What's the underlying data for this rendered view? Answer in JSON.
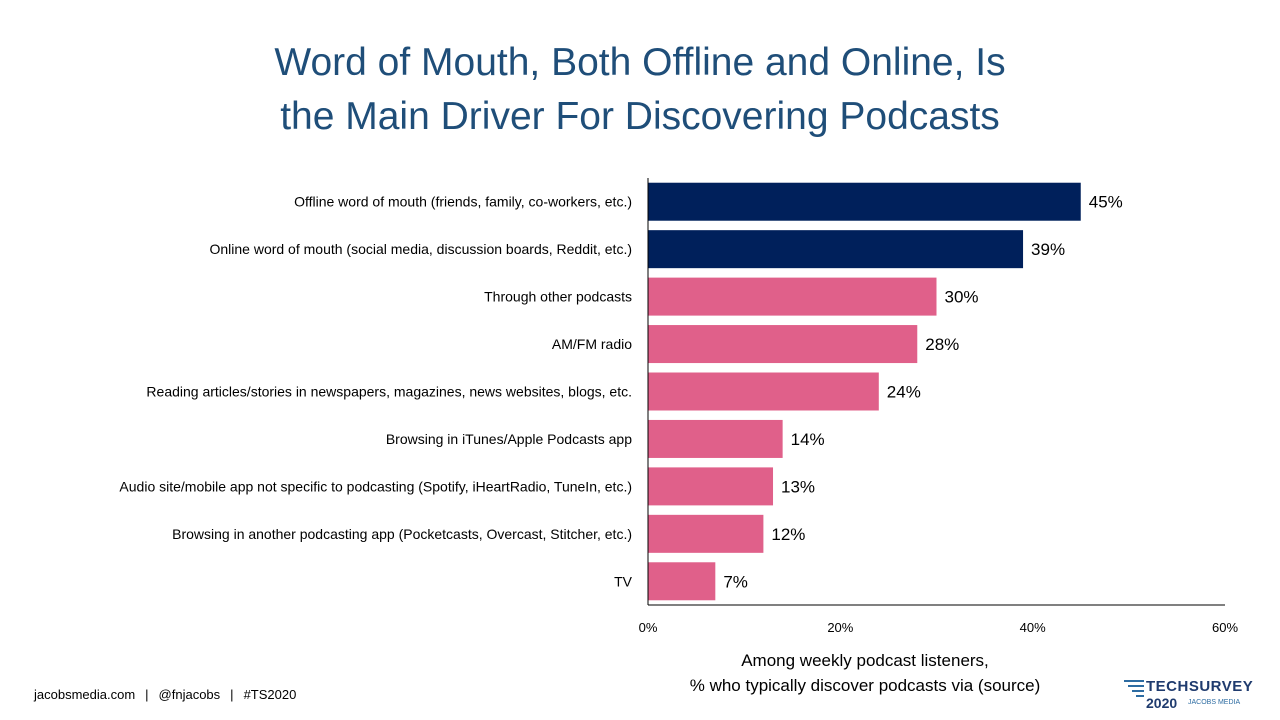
{
  "title": {
    "line1": "Word of Mouth, Both Offline and Online, Is",
    "line2": "the Main Driver For Discovering Podcasts"
  },
  "colors": {
    "title": "#1f4e79",
    "highlight": "#00205b",
    "bar": "#e0608a",
    "axis": "#000000"
  },
  "chart_data": {
    "type": "bar",
    "orientation": "horizontal",
    "title": "Word of Mouth, Both Offline and Online, Is the Main Driver For Discovering Podcasts",
    "categories": [
      "Offline word of mouth (friends, family, co-workers, etc.)",
      "Online word of mouth (social media, discussion boards, Reddit, etc.)",
      "Through other podcasts",
      "AM/FM radio",
      "Reading articles/stories in newspapers, magazines, news websites, blogs, etc.",
      "Browsing in iTunes/Apple Podcasts app",
      "Audio site/mobile app not specific to podcasting (Spotify, iHeartRadio, TuneIn, etc.)",
      "Browsing in another podcasting app (Pocketcasts, Overcast, Stitcher, etc.)",
      "TV"
    ],
    "values": [
      45,
      39,
      30,
      28,
      24,
      14,
      13,
      12,
      7
    ],
    "value_labels": [
      "45%",
      "39%",
      "30%",
      "28%",
      "24%",
      "14%",
      "13%",
      "12%",
      "7%"
    ],
    "highlighted": [
      true,
      true,
      false,
      false,
      false,
      false,
      false,
      false,
      false
    ],
    "xlim": [
      0,
      60
    ],
    "xticks": [
      0,
      20,
      40,
      60
    ],
    "xtick_labels": [
      "0%",
      "20%",
      "40%",
      "60%"
    ],
    "xlabel_line1": "Among weekly podcast listeners,",
    "xlabel_line2": "% who typically discover podcasts via (source)",
    "grid": false
  },
  "footer": {
    "site": "jacobsmedia.com",
    "handle": "@fnjacobs",
    "hashtag": "#TS2020",
    "separator": "|"
  },
  "logo": {
    "name": "TECHSURVEY",
    "year": "2020",
    "sub": "JACOBS MEDIA"
  }
}
